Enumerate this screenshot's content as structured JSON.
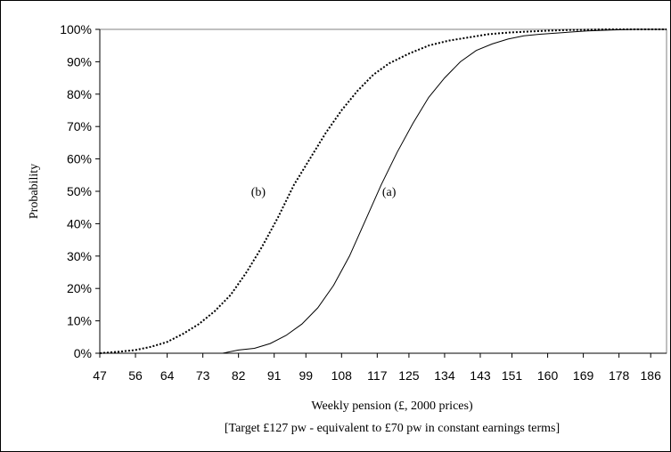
{
  "chart_data": {
    "type": "line",
    "ylabel": "Probability",
    "xlabel": "Weekly pension (£, 2000 prices)",
    "note": "[Target £127 pw - equivalent to £70 pw in constant earnings terms]",
    "x_ticks": [
      "47",
      "56",
      "64",
      "73",
      "82",
      "91",
      "99",
      "108",
      "117",
      "125",
      "134",
      "143",
      "151",
      "160",
      "169",
      "178",
      "186"
    ],
    "x_range": [
      47,
      190
    ],
    "y_ticks": [
      "0%",
      "10%",
      "20%",
      "30%",
      "40%",
      "50%",
      "60%",
      "70%",
      "80%",
      "90%",
      "100%"
    ],
    "ylim": [
      0,
      1
    ],
    "grid": false,
    "series": [
      {
        "name": "(a)",
        "style": "solid",
        "color": "#000000",
        "x": [
          47,
          78,
          82,
          86,
          90,
          94,
          98,
          102,
          106,
          110,
          114,
          118,
          122,
          126,
          130,
          134,
          138,
          142,
          146,
          150,
          154,
          158,
          164,
          170,
          176,
          182,
          190
        ],
        "y": [
          0,
          0,
          0.01,
          0.015,
          0.03,
          0.055,
          0.09,
          0.14,
          0.21,
          0.3,
          0.41,
          0.52,
          0.62,
          0.71,
          0.79,
          0.85,
          0.9,
          0.935,
          0.955,
          0.97,
          0.98,
          0.985,
          0.99,
          0.995,
          0.998,
          1,
          1
        ]
      },
      {
        "name": "(b)",
        "style": "dotted",
        "color": "#000000",
        "x": [
          47,
          52,
          56,
          60,
          64,
          68,
          72,
          76,
          80,
          84,
          88,
          92,
          96,
          100,
          104,
          108,
          112,
          116,
          120,
          125,
          130,
          135,
          140,
          145,
          150,
          155,
          160,
          165,
          170,
          175,
          180,
          190
        ],
        "y": [
          0,
          0.005,
          0.01,
          0.02,
          0.035,
          0.06,
          0.09,
          0.13,
          0.18,
          0.25,
          0.33,
          0.42,
          0.52,
          0.6,
          0.68,
          0.75,
          0.81,
          0.86,
          0.895,
          0.925,
          0.95,
          0.965,
          0.975,
          0.985,
          0.99,
          0.993,
          0.996,
          0.998,
          0.999,
          1,
          1,
          1
        ]
      }
    ],
    "annotations": [
      {
        "label": "(a)",
        "x": 120,
        "y": 0.5
      },
      {
        "label": "(b)",
        "x": 87,
        "y": 0.5
      }
    ]
  }
}
